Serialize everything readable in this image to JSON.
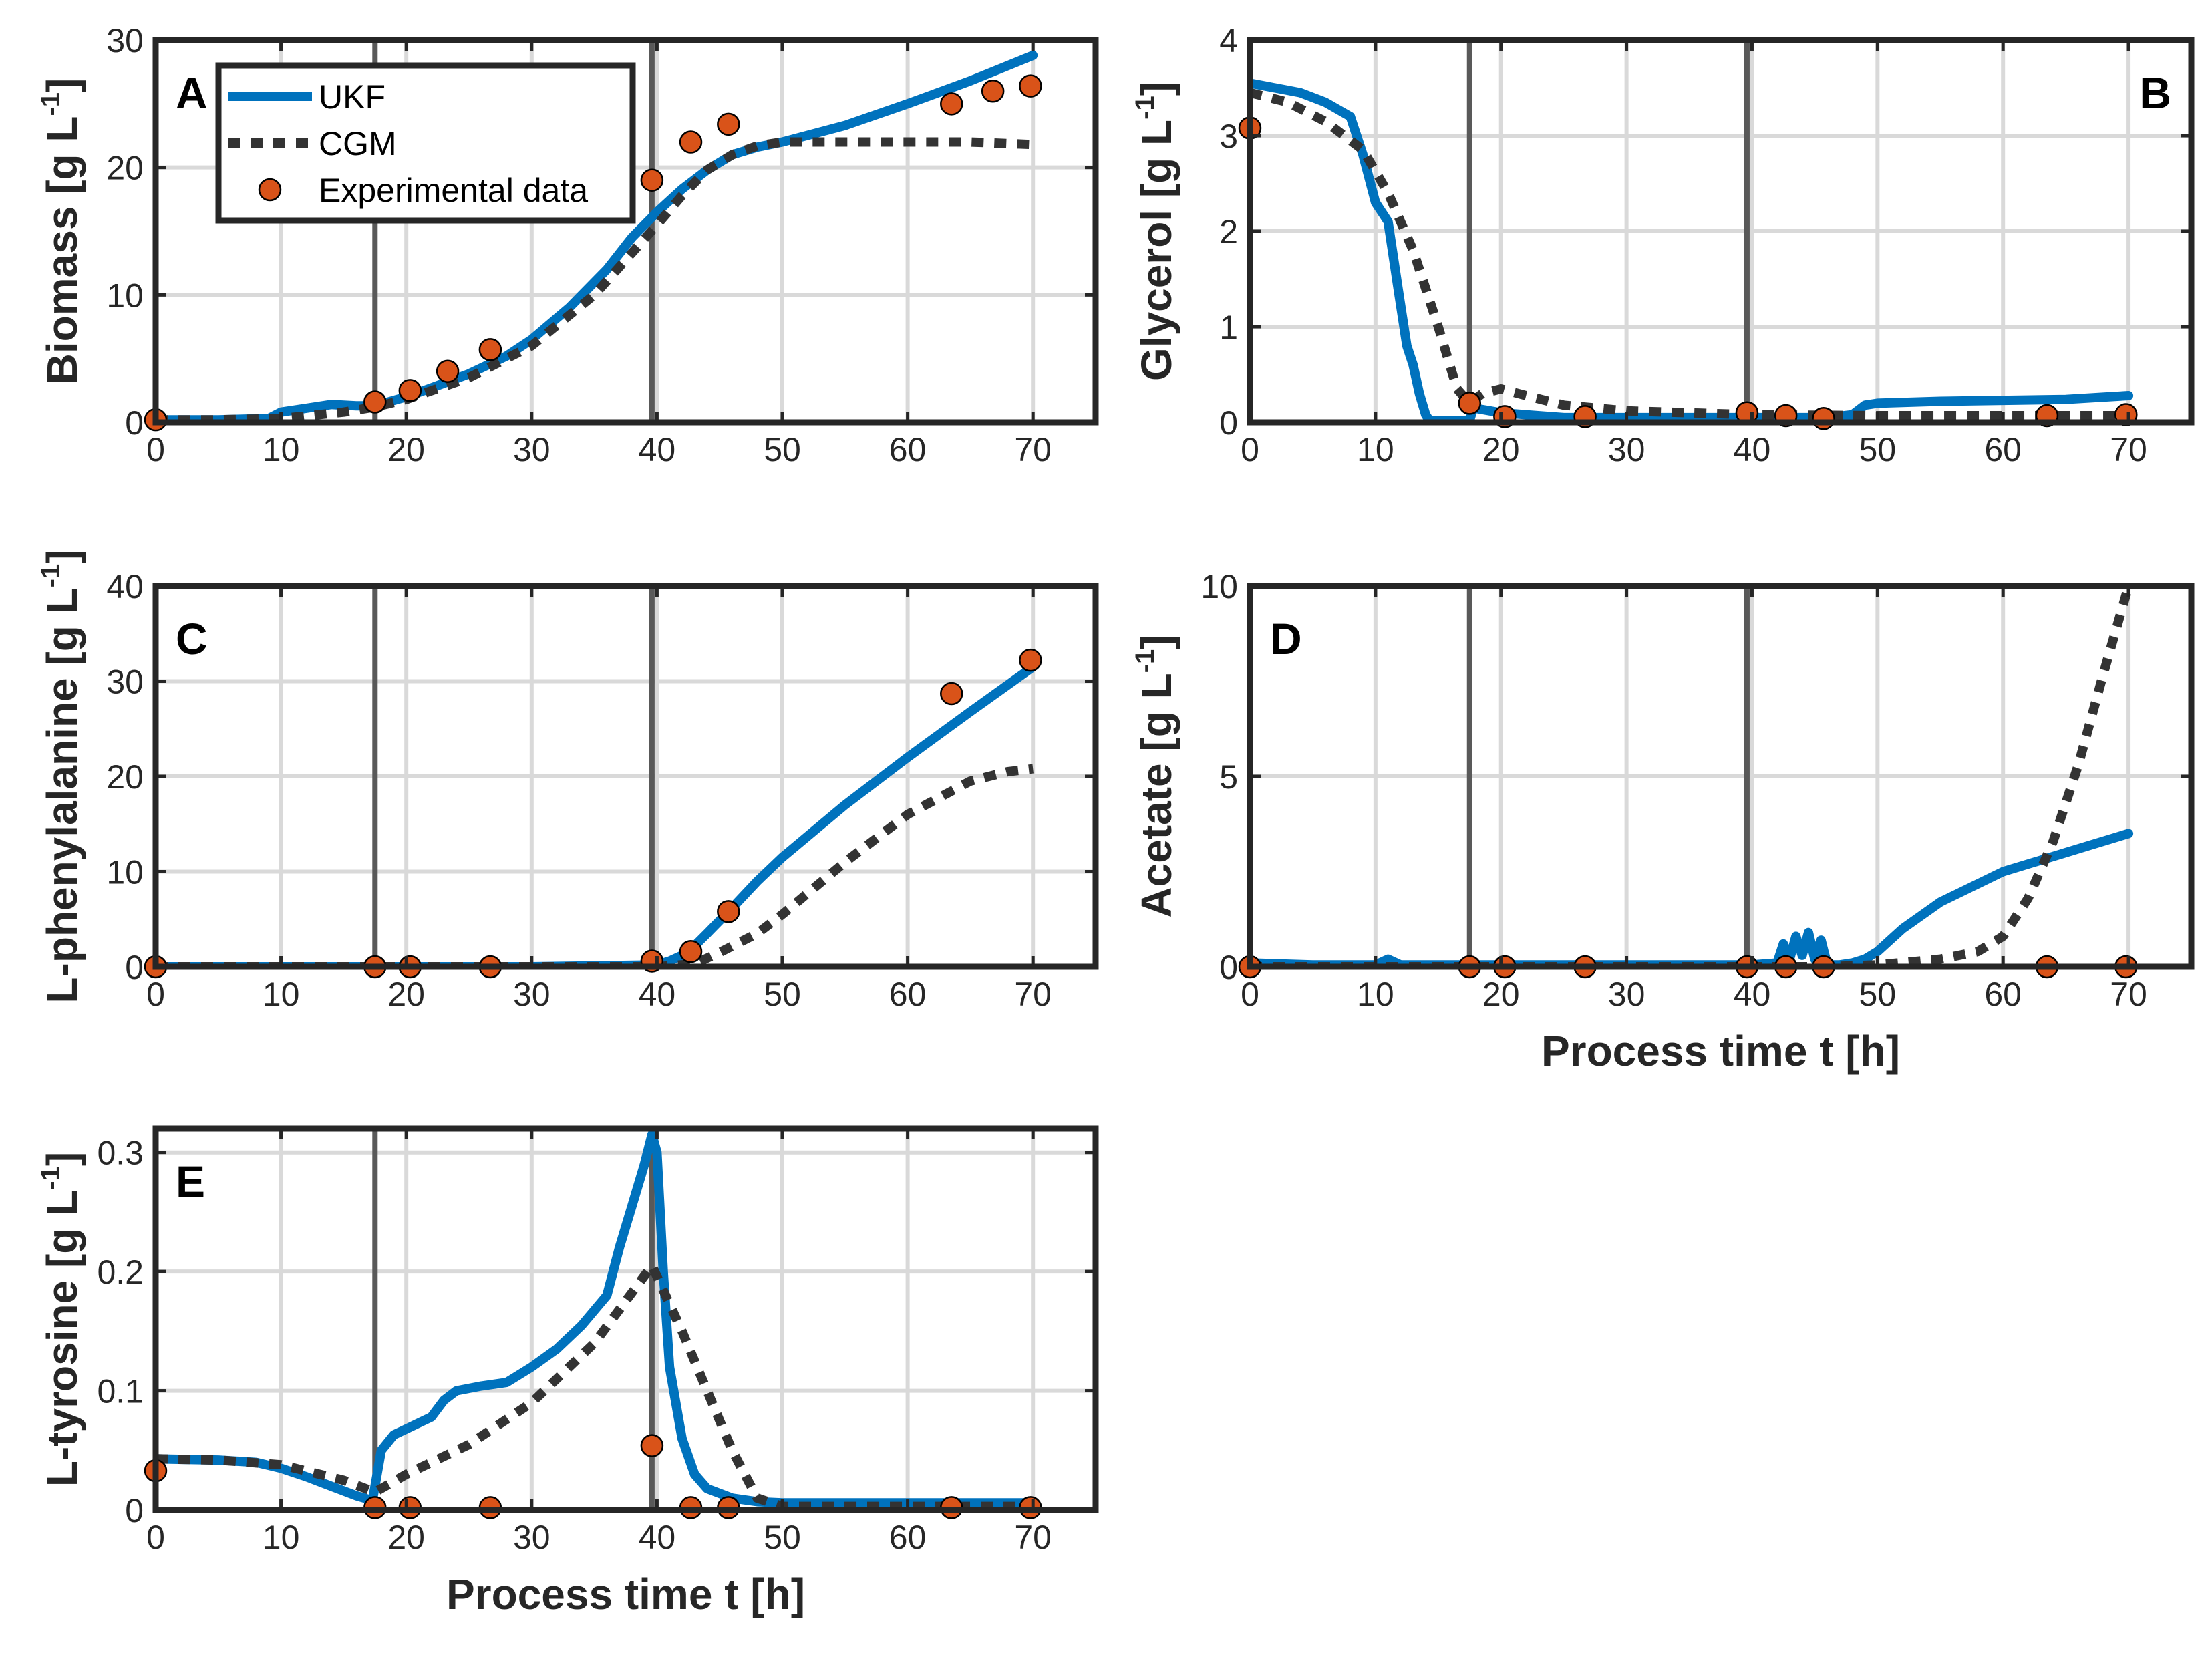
{
  "colors": {
    "ukf": "#0072BD",
    "cgm": "#333333",
    "exp_fill": "#D95319",
    "grid": "#d9d9d9",
    "vline": "#595959",
    "axis": "#262626"
  },
  "legend": {
    "entries": [
      "UKF",
      "CGM",
      "Experimental data"
    ]
  },
  "chart_data": [
    {
      "type": "line",
      "panel": "A",
      "xlabel": "",
      "ylabel": "Biomass [g L",
      "ylabel_sup": "-1",
      "ylabel_end": "]",
      "xlim": [
        0,
        75
      ],
      "ylim": [
        0,
        30
      ],
      "xticks": [
        0,
        10,
        20,
        30,
        40,
        50,
        60,
        70
      ],
      "yticks": [
        0,
        10,
        20,
        30
      ],
      "vlines": [
        17.5,
        39.6
      ],
      "series": [
        {
          "name": "UKF",
          "x": [
            0,
            5,
            9,
            10,
            12,
            14,
            16,
            17.5,
            20,
            22,
            25,
            28,
            30,
            33,
            36,
            38,
            40,
            42,
            44,
            46,
            48,
            50,
            55,
            60,
            65,
            70
          ],
          "y": [
            0.2,
            0.2,
            0.3,
            0.8,
            1.1,
            1.4,
            1.3,
            1.3,
            2.0,
            2.7,
            3.8,
            5.2,
            6.5,
            9.0,
            12.0,
            14.5,
            16.5,
            18.3,
            19.8,
            21.0,
            21.6,
            22.0,
            23.3,
            25.0,
            26.8,
            28.8
          ]
        },
        {
          "name": "CGM",
          "x": [
            0,
            5,
            10,
            15,
            17.5,
            20,
            25,
            30,
            35,
            40,
            42,
            44,
            46,
            48,
            50,
            55,
            60,
            65,
            70
          ],
          "y": [
            0.2,
            0.2,
            0.3,
            0.8,
            1.2,
            1.8,
            3.5,
            6.0,
            10.0,
            15.5,
            17.8,
            19.8,
            21.0,
            21.7,
            22.0,
            22.0,
            22.0,
            22.0,
            21.8
          ]
        },
        {
          "name": "Experimental data",
          "x": [
            0,
            17.5,
            20.3,
            23.3,
            26.7,
            39.6,
            42.7,
            45.7,
            63.5,
            66.8,
            69.8
          ],
          "y": [
            0.2,
            1.6,
            2.5,
            4.0,
            5.7,
            19.0,
            22.0,
            23.4,
            25.0,
            26.0,
            26.4
          ]
        }
      ]
    },
    {
      "type": "line",
      "panel": "B",
      "xlabel": "",
      "ylabel": "Glycerol [g L",
      "ylabel_sup": "-1",
      "ylabel_end": "]",
      "xlim": [
        0,
        75
      ],
      "ylim": [
        0,
        4
      ],
      "xticks": [
        0,
        10,
        20,
        30,
        40,
        50,
        60,
        70
      ],
      "yticks": [
        0,
        1,
        2,
        3,
        4
      ],
      "vlines": [
        17.5,
        39.6
      ],
      "series": [
        {
          "name": "UKF",
          "x": [
            0,
            2,
            4,
            6,
            8,
            9,
            10,
            11,
            11.8,
            12.5,
            13,
            13.5,
            14,
            14.3,
            14.6,
            15,
            17.5,
            17.8,
            20,
            25,
            30,
            40,
            46,
            48,
            49,
            50,
            55,
            60,
            65,
            70
          ],
          "y": [
            3.55,
            3.5,
            3.45,
            3.35,
            3.2,
            2.8,
            2.3,
            2.1,
            1.4,
            0.8,
            0.6,
            0.3,
            0.08,
            0.02,
            0.02,
            0.02,
            0.02,
            0.15,
            0.1,
            0.05,
            0.05,
            0.05,
            0.05,
            0.08,
            0.18,
            0.2,
            0.22,
            0.23,
            0.24,
            0.28
          ]
        },
        {
          "name": "CGM",
          "x": [
            0,
            3,
            6,
            9,
            11,
            13,
            15,
            16.5,
            17.5,
            18.5,
            20,
            22,
            25,
            30,
            40,
            50,
            60,
            70
          ],
          "y": [
            3.45,
            3.35,
            3.15,
            2.85,
            2.4,
            1.8,
            1.0,
            0.35,
            0.2,
            0.3,
            0.35,
            0.28,
            0.18,
            0.12,
            0.08,
            0.07,
            0.07,
            0.07
          ]
        },
        {
          "name": "Experimental data",
          "x": [
            0,
            17.5,
            20.3,
            26.7,
            39.6,
            42.7,
            45.7,
            63.5,
            69.8
          ],
          "y": [
            3.08,
            0.2,
            0.06,
            0.06,
            0.1,
            0.07,
            0.04,
            0.07,
            0.08
          ]
        }
      ]
    },
    {
      "type": "line",
      "panel": "C",
      "xlabel": "",
      "ylabel": "L-phenylalanine [g L",
      "ylabel_sup": "-1",
      "ylabel_end": "]",
      "xlim": [
        0,
        75
      ],
      "ylim": [
        0,
        40
      ],
      "xticks": [
        0,
        10,
        20,
        30,
        40,
        50,
        60,
        70
      ],
      "yticks": [
        0,
        10,
        20,
        30,
        40
      ],
      "vlines": [
        17.5,
        39.6
      ],
      "series": [
        {
          "name": "UKF",
          "x": [
            0,
            10,
            20,
            30,
            40,
            41,
            42,
            43,
            44,
            46,
            48,
            50,
            55,
            60,
            65,
            70
          ],
          "y": [
            0,
            0,
            0,
            0,
            0.2,
            0.6,
            1.2,
            2.2,
            3.5,
            6.2,
            9.0,
            11.5,
            17.0,
            22.0,
            26.8,
            31.5
          ]
        },
        {
          "name": "CGM",
          "x": [
            0,
            10,
            20,
            30,
            40,
            43,
            45,
            48,
            50,
            55,
            60,
            65,
            68,
            70
          ],
          "y": [
            0,
            0,
            0,
            0,
            0,
            0.3,
            1.5,
            3.5,
            5.5,
            11.0,
            16.0,
            19.5,
            20.5,
            20.8
          ]
        },
        {
          "name": "Experimental data",
          "x": [
            0,
            17.5,
            20.3,
            26.7,
            39.6,
            42.7,
            45.7,
            63.5,
            69.8
          ],
          "y": [
            0,
            0,
            0,
            0,
            0.6,
            1.6,
            5.8,
            28.7,
            32.2
          ]
        }
      ]
    },
    {
      "type": "line",
      "panel": "D",
      "xlabel": "Process time t [h]",
      "ylabel": "Acetate [g L",
      "ylabel_sup": "-1",
      "ylabel_end": "]",
      "xlim": [
        0,
        75
      ],
      "ylim": [
        0,
        10
      ],
      "xticks": [
        0,
        10,
        20,
        30,
        40,
        50,
        60,
        70
      ],
      "yticks": [
        0,
        5,
        10
      ],
      "vlines": [
        17.5,
        39.6
      ],
      "series": [
        {
          "name": "UKF",
          "x": [
            0,
            5,
            10,
            11,
            12,
            17.5,
            20,
            30,
            40,
            42,
            42.5,
            43,
            43.5,
            44,
            44.5,
            45,
            45.5,
            46,
            47,
            48,
            49,
            50,
            52,
            55,
            60,
            65,
            70
          ],
          "y": [
            0.1,
            0.05,
            0.05,
            0.2,
            0.05,
            0.05,
            0.05,
            0.05,
            0.05,
            0.1,
            0.6,
            0.2,
            0.8,
            0.3,
            0.9,
            0.2,
            0.7,
            0.05,
            0.05,
            0.1,
            0.2,
            0.4,
            1.0,
            1.7,
            2.5,
            3.0,
            3.5
          ]
        },
        {
          "name": "CGM",
          "x": [
            0,
            10,
            20,
            30,
            40,
            46,
            50,
            55,
            58,
            60,
            62,
            64,
            66,
            68,
            70
          ],
          "y": [
            0,
            0,
            0,
            0,
            0,
            0,
            0.05,
            0.2,
            0.4,
            0.8,
            1.8,
            3.3,
            5.3,
            7.7,
            10.0
          ]
        },
        {
          "name": "Experimental data",
          "x": [
            0,
            17.5,
            20.3,
            26.7,
            39.6,
            42.7,
            45.7,
            63.5,
            69.8
          ],
          "y": [
            0,
            0,
            0,
            0,
            0,
            0,
            0,
            0,
            0
          ]
        }
      ]
    },
    {
      "type": "line",
      "panel": "E",
      "xlabel": "Process time t [h]",
      "ylabel": "L-tyrosine [g L",
      "ylabel_sup": "-1",
      "ylabel_end": "]",
      "xlim": [
        0,
        75
      ],
      "ylim": [
        0,
        0.32
      ],
      "xticks": [
        0,
        10,
        20,
        30,
        40,
        50,
        60,
        70
      ],
      "yticks": [
        0,
        0.1,
        0.2,
        0.3
      ],
      "ytick_labels": [
        "0",
        "0.1",
        "0.2",
        "0.3"
      ],
      "vlines": [
        17.5,
        39.6
      ],
      "series": [
        {
          "name": "UKF",
          "x": [
            0,
            5,
            8,
            10,
            12,
            14,
            16,
            17.3,
            17.5,
            18,
            19,
            20,
            22,
            23,
            24,
            26,
            28,
            30,
            32,
            34,
            36,
            37,
            38,
            39,
            39.6,
            40,
            40.5,
            41,
            42,
            43,
            44,
            46,
            48,
            50,
            60,
            70
          ],
          "y": [
            0.043,
            0.042,
            0.04,
            0.035,
            0.028,
            0.02,
            0.012,
            0.008,
            0.02,
            0.05,
            0.063,
            0.068,
            0.078,
            0.092,
            0.1,
            0.104,
            0.107,
            0.12,
            0.135,
            0.155,
            0.18,
            0.22,
            0.255,
            0.29,
            0.315,
            0.3,
            0.2,
            0.12,
            0.06,
            0.03,
            0.018,
            0.01,
            0.007,
            0.006,
            0.006,
            0.006
          ]
        },
        {
          "name": "CGM",
          "x": [
            0,
            5,
            10,
            15,
            17.5,
            20,
            25,
            30,
            35,
            39.6,
            42,
            44,
            46,
            48,
            50,
            60,
            70
          ],
          "y": [
            0.043,
            0.042,
            0.038,
            0.025,
            0.015,
            0.03,
            0.055,
            0.09,
            0.14,
            0.205,
            0.15,
            0.1,
            0.05,
            0.01,
            0.003,
            0.003,
            0.003
          ]
        },
        {
          "name": "Experimental data",
          "x": [
            0,
            17.5,
            20.3,
            26.7,
            39.6,
            42.7,
            45.7,
            63.5,
            69.8
          ],
          "y": [
            0.033,
            0.002,
            0.002,
            0.002,
            0.054,
            0.002,
            0.002,
            0.002,
            0.002
          ]
        }
      ]
    }
  ]
}
